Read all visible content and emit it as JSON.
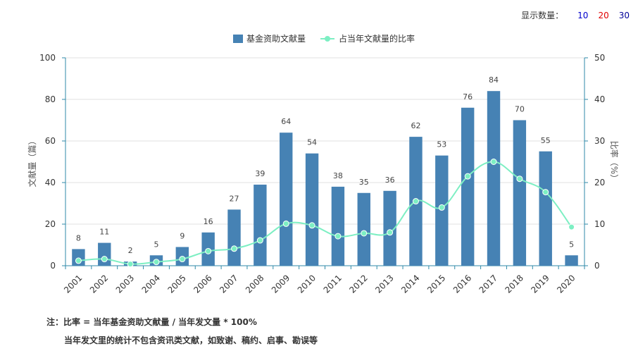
{
  "display_count": {
    "label": "显示数量：",
    "options": [
      "10",
      "20",
      "30"
    ]
  },
  "colors": {
    "bar": "#4682b4",
    "line": "#7defc3",
    "axis": "#2f8aa8",
    "grid": "#e0e0e0"
  },
  "notes": {
    "line1": "注：比率 = 当年基金资助文献量 / 当年发文量 * 100%",
    "line2": "当年发文里的统计不包含资讯类文献，如致谢、稿约、启事、勘误等"
  },
  "chart_data": {
    "type": "bar",
    "categories": [
      "2001",
      "2002",
      "2003",
      "2004",
      "2005",
      "2006",
      "2007",
      "2008",
      "2009",
      "2010",
      "2011",
      "2012",
      "2013",
      "2014",
      "2015",
      "2016",
      "2017",
      "2018",
      "2019",
      "2020"
    ],
    "series": [
      {
        "name": "基金资助文献量",
        "type": "bar",
        "axis": "left",
        "values": [
          8,
          11,
          2,
          5,
          9,
          16,
          27,
          39,
          64,
          54,
          38,
          35,
          36,
          62,
          53,
          76,
          84,
          70,
          55,
          5
        ]
      },
      {
        "name": "占当年文献量的比率",
        "type": "line",
        "axis": "right",
        "values": [
          1.2,
          1.6,
          0.4,
          0.9,
          1.6,
          3.5,
          4.1,
          6.1,
          10.1,
          9.7,
          7.1,
          7.8,
          8.0,
          15.5,
          14.0,
          21.5,
          25.0,
          20.9,
          17.7,
          9.3
        ]
      }
    ],
    "ylabel_left": "文献量（篇）",
    "ylabel_right": "比率（%）",
    "ylim_left": [
      0,
      100
    ],
    "yticks_left": [
      0,
      20,
      40,
      60,
      80,
      100
    ],
    "ylim_right": [
      0,
      50
    ],
    "yticks_right": [
      0,
      10,
      20,
      30,
      40,
      50
    ],
    "grid": true,
    "legend_position": "top-center"
  }
}
